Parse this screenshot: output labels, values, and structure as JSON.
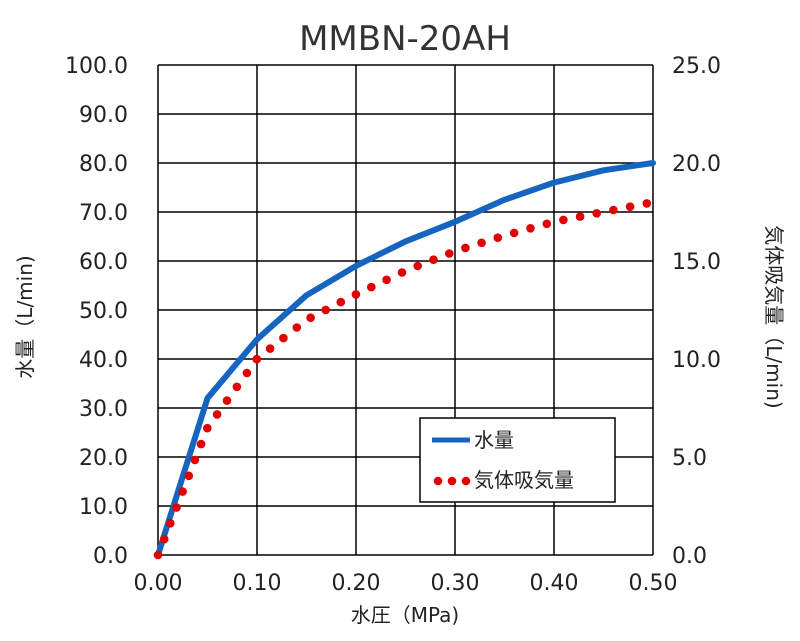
{
  "chart_data": {
    "type": "line",
    "title": "MMBN-20AH",
    "xlabel": "水圧（MPa)",
    "ylabel": "水量（L/min)",
    "y2label": "気体吸気量（L/min)",
    "xlim": [
      0,
      0.5
    ],
    "ylim": [
      0,
      100
    ],
    "y2lim": [
      0,
      25
    ],
    "x_ticks": [
      "0.00",
      "0.10",
      "0.20",
      "0.30",
      "0.40",
      "0.50"
    ],
    "y_ticks": [
      "0.0",
      "10.0",
      "20.0",
      "30.0",
      "40.0",
      "50.0",
      "60.0",
      "70.0",
      "80.0",
      "90.0",
      "100.0"
    ],
    "y2_ticks": [
      "0.0",
      "5.0",
      "10.0",
      "15.0",
      "20.0",
      "25.0"
    ],
    "grid": true,
    "legend_position": "lower-right",
    "series": [
      {
        "name": "水量",
        "axis": "left",
        "style": "solid",
        "color": "#1565c0",
        "x": [
          0.0,
          0.05,
          0.1,
          0.15,
          0.2,
          0.25,
          0.3,
          0.35,
          0.4,
          0.45,
          0.5
        ],
        "values": [
          0.0,
          32.0,
          44.0,
          53.0,
          59.0,
          64.0,
          68.0,
          72.5,
          76.0,
          78.5,
          80.0
        ]
      },
      {
        "name": "気体吸気量",
        "axis": "right",
        "style": "dotted",
        "color": "#e00000",
        "x": [
          0.0,
          0.05,
          0.1,
          0.15,
          0.2,
          0.25,
          0.3,
          0.35,
          0.4,
          0.45,
          0.5
        ],
        "values": [
          0.0,
          6.5,
          10.0,
          12.0,
          13.3,
          14.5,
          15.5,
          16.3,
          17.0,
          17.5,
          18.0
        ]
      }
    ]
  }
}
